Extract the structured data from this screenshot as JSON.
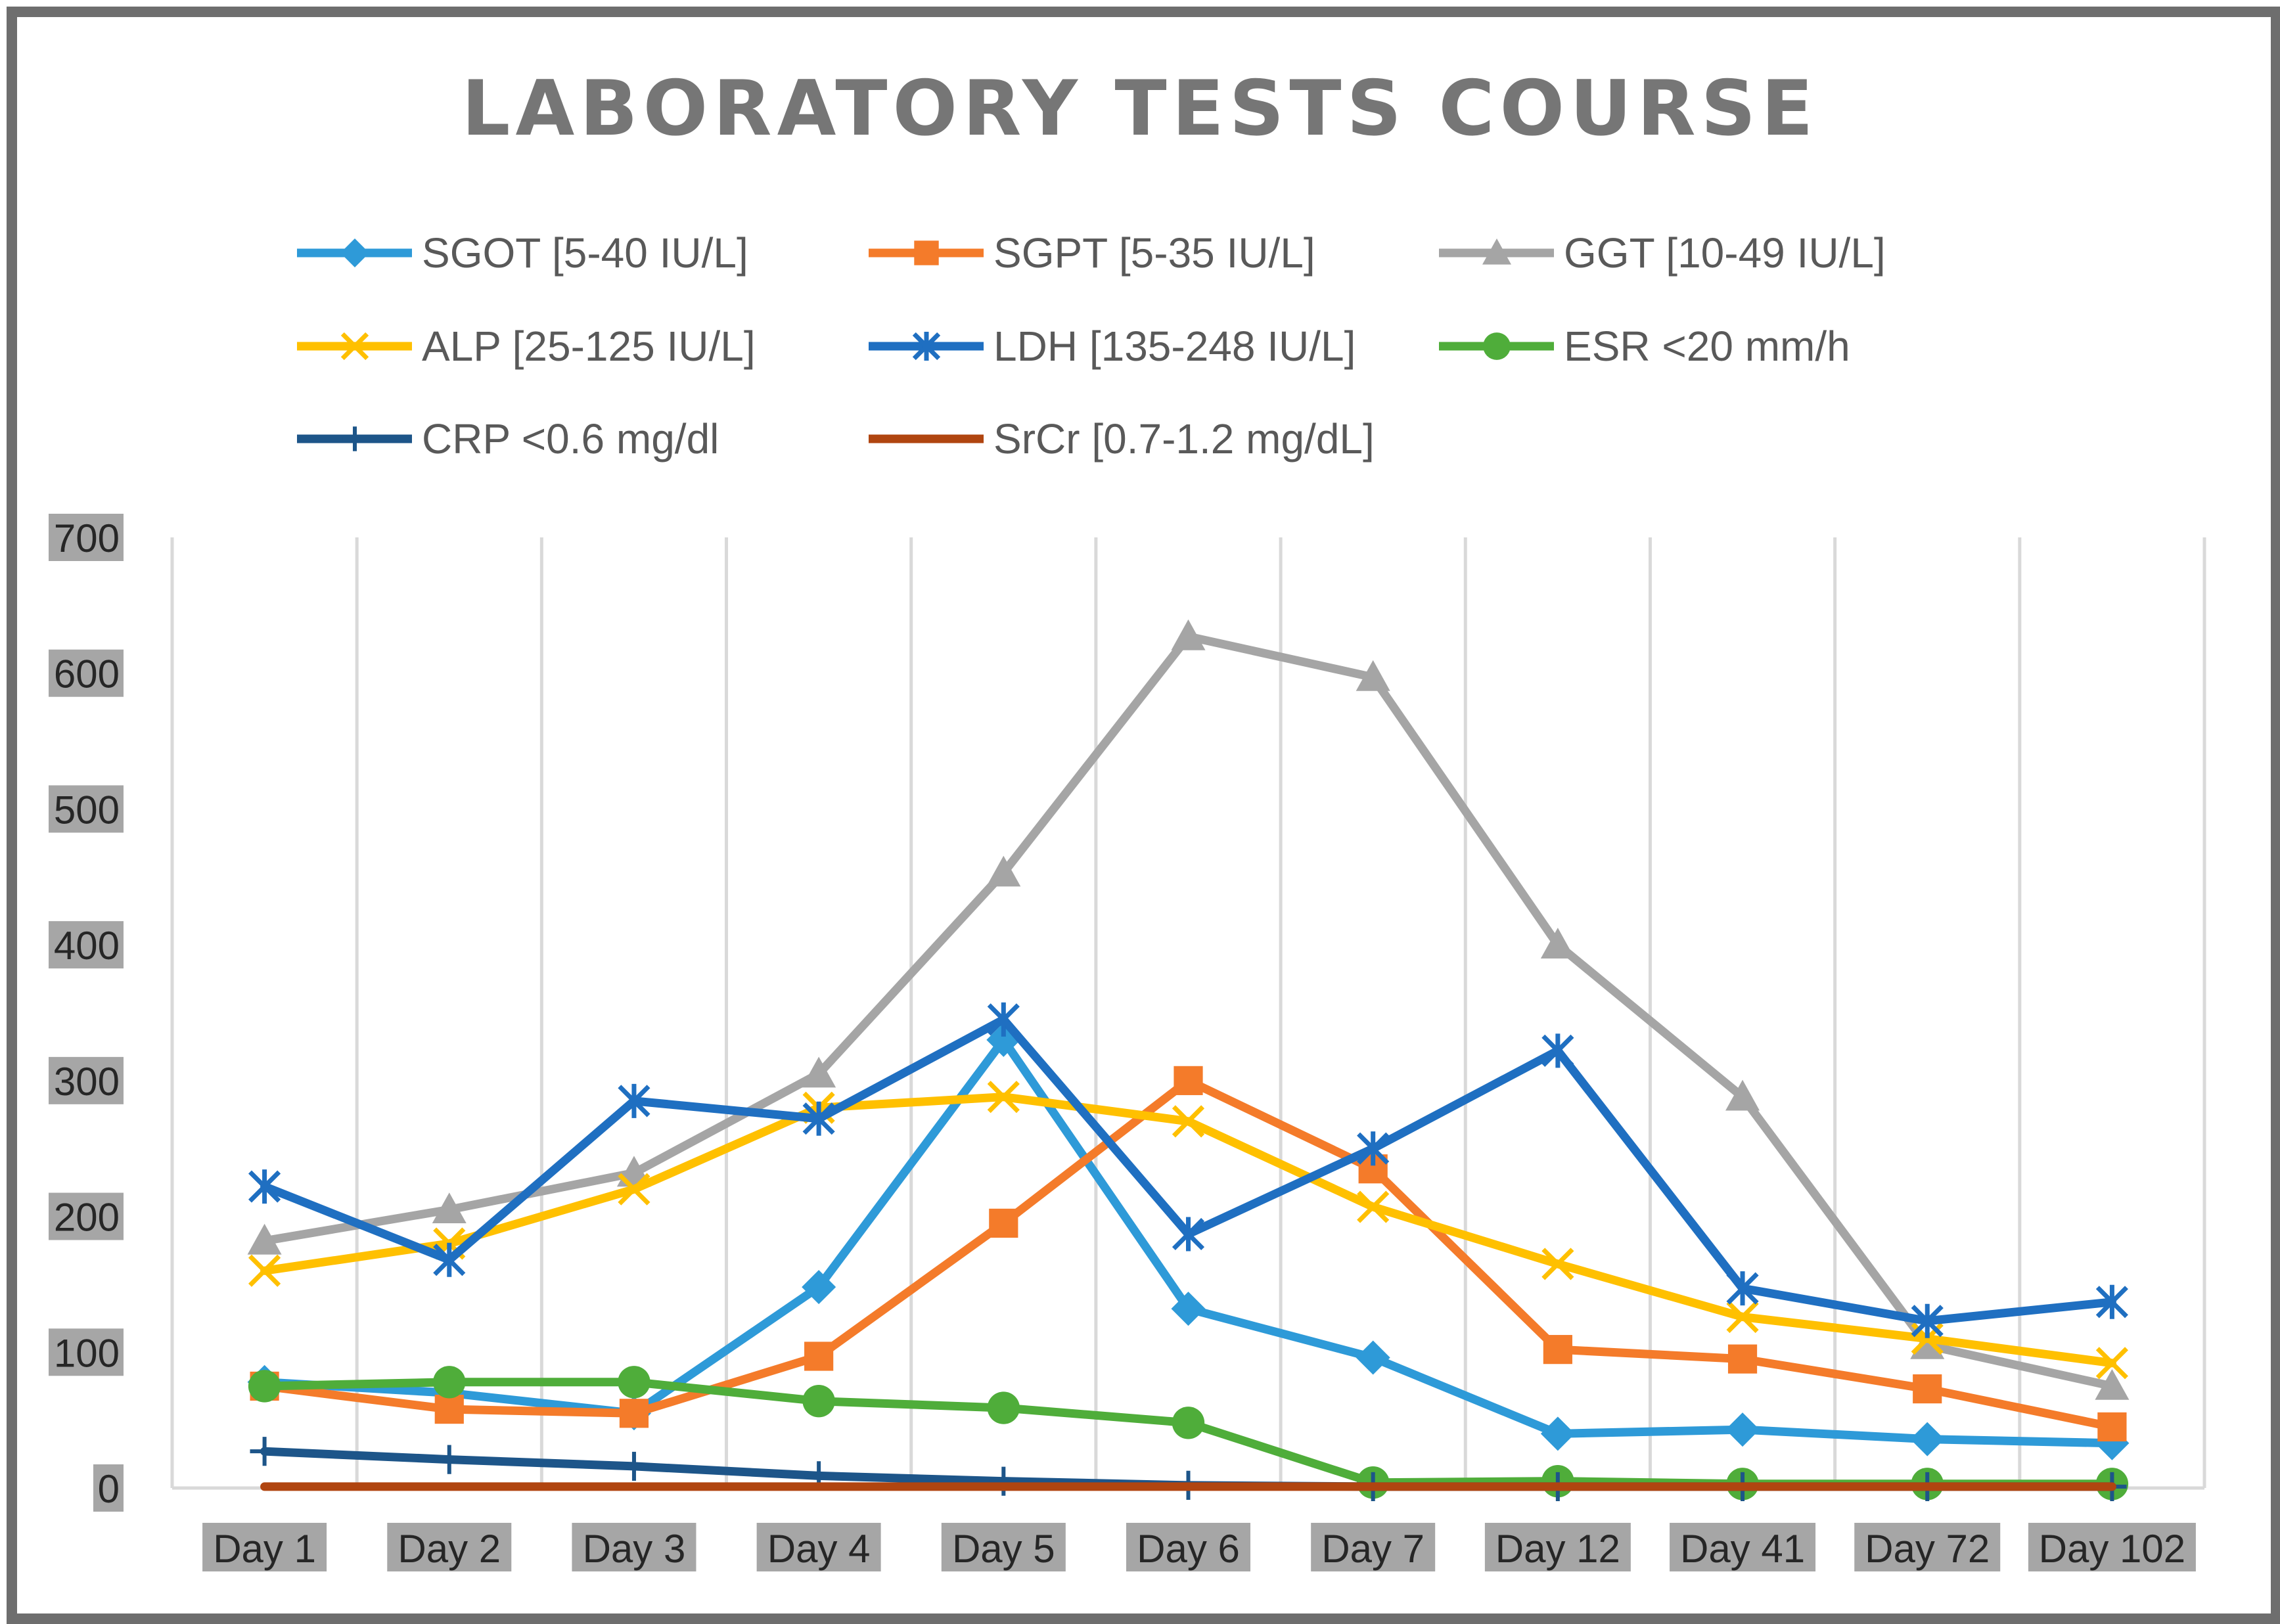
{
  "chart_data": {
    "type": "line",
    "title": "LABORATORY TESTS COURSE",
    "xlabel": "",
    "ylabel": "",
    "ylim": [
      0,
      700
    ],
    "yticks": [
      0,
      100,
      200,
      300,
      400,
      500,
      600,
      700
    ],
    "grid": "vertical",
    "legend_position": "top",
    "categories": [
      "Day 1",
      "Day 2",
      "Day 3",
      "Day 4",
      "Day 5",
      "Day 6",
      "Day 7",
      "Day 12",
      "Day 41",
      "Day 72",
      "Day 102"
    ],
    "series": [
      {
        "name": "SGOT [5-40 IU/L]",
        "color": "#2e9ad8",
        "marker": "diamond",
        "values": [
          78,
          70,
          55,
          148,
          330,
          132,
          96,
          40,
          43,
          36,
          33
        ]
      },
      {
        "name": "SGPT [5-35 IU/L]",
        "color": "#f47b2a",
        "marker": "square",
        "values": [
          75,
          58,
          55,
          97,
          195,
          300,
          235,
          102,
          95,
          73,
          45
        ]
      },
      {
        "name": "GGT [10-49 IU/L]",
        "color": "#a5a5a5",
        "marker": "triangle",
        "values": [
          182,
          205,
          232,
          305,
          453,
          627,
          597,
          400,
          288,
          105,
          75
        ]
      },
      {
        "name": "ALP [25-125 IU/L]",
        "color": "#ffc000",
        "marker": "x",
        "values": [
          160,
          180,
          220,
          280,
          288,
          270,
          207,
          165,
          126,
          110,
          92
        ]
      },
      {
        "name": "LDH [135-248 IU/L]",
        "color": "#1f6fc1",
        "marker": "star",
        "values": [
          222,
          168,
          285,
          272,
          345,
          187,
          250,
          322,
          147,
          123,
          137
        ]
      },
      {
        "name": "ESR <20 mm/h",
        "color": "#4fad3a",
        "marker": "circle",
        "values": [
          75,
          78,
          78,
          64,
          59,
          48,
          4,
          5,
          3,
          3,
          3
        ]
      },
      {
        "name": "CRP <0.6 mg/dl",
        "color": "#1d5589",
        "marker": "plus",
        "values": [
          27,
          21,
          16,
          9,
          5,
          2,
          1,
          1,
          1,
          1,
          1
        ]
      },
      {
        "name": "SrCr [0.7-1.2 mg/dL]",
        "color": "#b04510",
        "marker": "none",
        "values": [
          1,
          1,
          1,
          1,
          1,
          1,
          1,
          1,
          1,
          1,
          1
        ]
      }
    ]
  }
}
